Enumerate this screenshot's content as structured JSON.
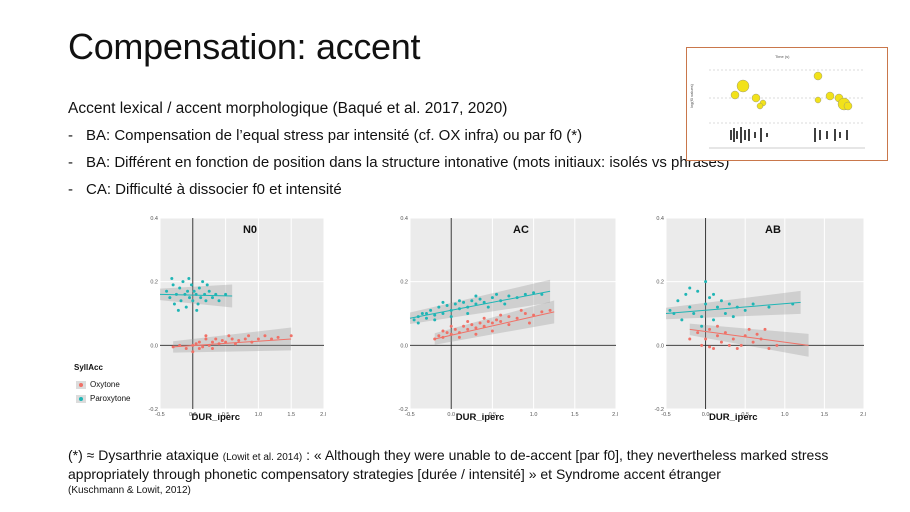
{
  "slide": {
    "title": "Compensation: accent",
    "subtitle": "Accent lexical / accent morphologique (Baqué et al. 2017, 2020)",
    "bullets": [
      {
        "dash": "-",
        "text": "BA: Compensation de l’equal stress par intensité (cf. OX infra) ou par f0 (*)"
      },
      {
        "dash": "-",
        "text": "BA: Différent en fonction de position dans la structure intonative (mots initiaux: isolés vs phrases)"
      },
      {
        "dash": "-",
        "text": "CA: Difficulté à dissocier f0 et intensité"
      }
    ],
    "footer": {
      "prefix": "(*) ≈ Dysarthrie ataxique",
      "ref1": "(Lowit et al. 2014)",
      "quote": ": « Although they were unable to de-accent [par f0], they nevertheless marked stress appropriately through phonetic compensatory strategies [durée / intensité] » et Syndrome accent étranger",
      "ref2": "(Kuschmann & Lowit, 2012)"
    }
  },
  "inset": {
    "border_color": "#c9774b",
    "bubble_color": "#f2e21a",
    "y_label": "log(f0 values)",
    "x_label": "Time (s)"
  },
  "legend": {
    "title": "SyllAcc",
    "items": [
      {
        "label": "Oxytone",
        "color": "#f07167"
      },
      {
        "label": "Paroxytone",
        "color": "#1fb5b5"
      }
    ]
  },
  "chart_data": [
    {
      "type": "scatter",
      "title": "N0",
      "xlabel": "DUR_iperc",
      "xlim": [
        -0.5,
        2.0
      ],
      "ylim": [
        -0.2,
        0.4
      ],
      "x_ticks": [
        "-0.5",
        "0.0",
        "0.5",
        "1.0",
        "1.5",
        "2.0"
      ],
      "y_ticks": [
        "-0.2",
        "0.0",
        "0.2",
        "0.4"
      ],
      "series": [
        {
          "name": "Oxytone",
          "color": "#f07167",
          "points": [
            [
              -0.3,
              -0.005
            ],
            [
              -0.2,
              0.0
            ],
            [
              -0.1,
              -0.01
            ],
            [
              0.0,
              0.0
            ],
            [
              0.05,
              0.005
            ],
            [
              0.1,
              0.01
            ],
            [
              0.15,
              -0.005
            ],
            [
              0.2,
              0.02
            ],
            [
              0.25,
              0.0
            ],
            [
              0.3,
              0.01
            ],
            [
              0.35,
              0.02
            ],
            [
              0.4,
              0.005
            ],
            [
              0.45,
              0.015
            ],
            [
              0.5,
              0.01
            ],
            [
              0.6,
              0.02
            ],
            [
              0.7,
              0.015
            ],
            [
              0.8,
              0.02
            ],
            [
              0.9,
              0.01
            ],
            [
              1.0,
              0.02
            ],
            [
              1.1,
              0.03
            ],
            [
              1.2,
              0.02
            ],
            [
              1.3,
              0.025
            ],
            [
              1.5,
              0.03
            ],
            [
              0.0,
              -0.02
            ],
            [
              0.1,
              -0.01
            ],
            [
              0.2,
              0.03
            ],
            [
              0.3,
              -0.01
            ],
            [
              0.55,
              0.03
            ],
            [
              0.65,
              0.005
            ],
            [
              0.85,
              0.03
            ]
          ],
          "fit": [
            [
              -0.3,
              -0.005
            ],
            [
              1.5,
              0.02
            ]
          ]
        },
        {
          "name": "Paroxytone",
          "color": "#1fb5b5",
          "points": [
            [
              -0.4,
              0.17
            ],
            [
              -0.35,
              0.15
            ],
            [
              -0.3,
              0.19
            ],
            [
              -0.28,
              0.13
            ],
            [
              -0.25,
              0.16
            ],
            [
              -0.2,
              0.18
            ],
            [
              -0.18,
              0.14
            ],
            [
              -0.15,
              0.2
            ],
            [
              -0.12,
              0.16
            ],
            [
              -0.1,
              0.12
            ],
            [
              -0.08,
              0.17
            ],
            [
              -0.05,
              0.15
            ],
            [
              -0.02,
              0.19
            ],
            [
              0.0,
              0.14
            ],
            [
              0.02,
              0.17
            ],
            [
              0.05,
              0.16
            ],
            [
              0.08,
              0.13
            ],
            [
              0.1,
              0.18
            ],
            [
              0.12,
              0.15
            ],
            [
              0.15,
              0.2
            ],
            [
              0.18,
              0.16
            ],
            [
              0.2,
              0.14
            ],
            [
              0.25,
              0.17
            ],
            [
              0.3,
              0.15
            ],
            [
              -0.32,
              0.21
            ],
            [
              -0.22,
              0.11
            ],
            [
              -0.06,
              0.21
            ],
            [
              0.06,
              0.11
            ],
            [
              0.22,
              0.19
            ],
            [
              0.35,
              0.16
            ],
            [
              0.4,
              0.14
            ],
            [
              0.5,
              0.16
            ]
          ],
          "fit": [
            [
              -0.5,
              0.16
            ],
            [
              0.6,
              0.155
            ]
          ]
        }
      ]
    },
    {
      "type": "scatter",
      "title": "AC",
      "xlabel": "DUR_iperc",
      "xlim": [
        -0.5,
        2.0
      ],
      "ylim": [
        -0.2,
        0.4
      ],
      "x_ticks": [
        "-0.5",
        "0.0",
        "0.5",
        "1.0",
        "1.5",
        "2.0"
      ],
      "y_ticks": [
        "-0.2",
        "0.0",
        "0.2",
        "0.4"
      ],
      "series": [
        {
          "name": "Oxytone",
          "color": "#f07167",
          "points": [
            [
              -0.2,
              0.02
            ],
            [
              -0.15,
              0.03
            ],
            [
              -0.1,
              0.025
            ],
            [
              -0.05,
              0.04
            ],
            [
              0.0,
              0.035
            ],
            [
              0.05,
              0.05
            ],
            [
              0.1,
              0.04
            ],
            [
              0.15,
              0.06
            ],
            [
              0.2,
              0.05
            ],
            [
              0.25,
              0.065
            ],
            [
              0.3,
              0.055
            ],
            [
              0.35,
              0.07
            ],
            [
              0.4,
              0.06
            ],
            [
              0.45,
              0.075
            ],
            [
              0.5,
              0.07
            ],
            [
              0.55,
              0.08
            ],
            [
              0.6,
              0.075
            ],
            [
              0.7,
              0.09
            ],
            [
              0.8,
              0.085
            ],
            [
              0.9,
              0.1
            ],
            [
              1.0,
              0.095
            ],
            [
              1.1,
              0.105
            ],
            [
              1.2,
              0.11
            ],
            [
              -0.1,
              0.045
            ],
            [
              0.0,
              0.06
            ],
            [
              0.1,
              0.025
            ],
            [
              0.2,
              0.075
            ],
            [
              0.3,
              0.035
            ],
            [
              0.4,
              0.085
            ],
            [
              0.5,
              0.045
            ],
            [
              0.6,
              0.095
            ],
            [
              0.7,
              0.065
            ],
            [
              0.85,
              0.11
            ],
            [
              0.95,
              0.07
            ]
          ],
          "fit": [
            [
              -0.2,
              0.02
            ],
            [
              1.25,
              0.105
            ]
          ]
        },
        {
          "name": "Paroxytone",
          "color": "#1fb5b5",
          "points": [
            [
              -0.45,
              0.08
            ],
            [
              -0.4,
              0.09
            ],
            [
              -0.35,
              0.1
            ],
            [
              -0.3,
              0.085
            ],
            [
              -0.25,
              0.11
            ],
            [
              -0.2,
              0.095
            ],
            [
              -0.15,
              0.12
            ],
            [
              -0.1,
              0.1
            ],
            [
              -0.05,
              0.125
            ],
            [
              0.0,
              0.11
            ],
            [
              0.05,
              0.13
            ],
            [
              0.1,
              0.115
            ],
            [
              0.15,
              0.135
            ],
            [
              0.2,
              0.12
            ],
            [
              0.25,
              0.14
            ],
            [
              0.3,
              0.13
            ],
            [
              0.35,
              0.145
            ],
            [
              0.4,
              0.135
            ],
            [
              0.5,
              0.15
            ],
            [
              0.6,
              0.14
            ],
            [
              0.7,
              0.155
            ],
            [
              0.8,
              0.15
            ],
            [
              -0.4,
              0.07
            ],
            [
              -0.3,
              0.1
            ],
            [
              -0.2,
              0.08
            ],
            [
              -0.1,
              0.135
            ],
            [
              0.0,
              0.09
            ],
            [
              0.1,
              0.14
            ],
            [
              0.2,
              0.1
            ],
            [
              0.3,
              0.155
            ],
            [
              0.45,
              0.12
            ],
            [
              0.55,
              0.16
            ],
            [
              0.65,
              0.13
            ],
            [
              0.9,
              0.16
            ],
            [
              1.0,
              0.165
            ],
            [
              1.1,
              0.16
            ]
          ],
          "fit": [
            [
              -0.5,
              0.085
            ],
            [
              1.2,
              0.17
            ]
          ]
        }
      ]
    },
    {
      "type": "scatter",
      "title": "AB",
      "xlabel": "DUR_iperc",
      "xlim": [
        -0.5,
        2.0
      ],
      "ylim": [
        -0.2,
        0.4
      ],
      "x_ticks": [
        "-0.5",
        "0.0",
        "0.5",
        "1.0",
        "1.5",
        "2.0"
      ],
      "y_ticks": [
        "-0.2",
        "0.0",
        "0.2",
        "0.4"
      ],
      "series": [
        {
          "name": "Oxytone",
          "color": "#f07167",
          "points": [
            [
              -0.2,
              0.02
            ],
            [
              -0.1,
              0.04
            ],
            [
              -0.05,
              0.0
            ],
            [
              0.0,
              0.02
            ],
            [
              0.05,
              0.05
            ],
            [
              0.1,
              -0.01
            ],
            [
              0.15,
              0.03
            ],
            [
              0.2,
              0.01
            ],
            [
              0.25,
              0.04
            ],
            [
              0.3,
              0.0
            ],
            [
              0.35,
              0.02
            ],
            [
              0.4,
              -0.01
            ],
            [
              0.5,
              0.03
            ],
            [
              0.6,
              0.01
            ],
            [
              0.7,
              0.02
            ],
            [
              0.8,
              -0.01
            ],
            [
              0.9,
              0.0
            ],
            [
              0.55,
              0.05
            ],
            [
              0.45,
              0.0
            ],
            [
              0.65,
              0.035
            ],
            [
              0.75,
              0.05
            ],
            [
              0.05,
              -0.005
            ],
            [
              0.15,
              0.06
            ]
          ],
          "fit": [
            [
              -0.2,
              0.05
            ],
            [
              1.3,
              0.0
            ]
          ]
        },
        {
          "name": "Paroxytone",
          "color": "#1fb5b5",
          "points": [
            [
              -0.4,
              0.1
            ],
            [
              -0.35,
              0.14
            ],
            [
              -0.3,
              0.08
            ],
            [
              -0.25,
              0.16
            ],
            [
              -0.2,
              0.12
            ],
            [
              -0.15,
              0.1
            ],
            [
              -0.1,
              0.17
            ],
            [
              -0.05,
              0.09
            ],
            [
              0.0,
              0.13
            ],
            [
              0.05,
              0.15
            ],
            [
              0.1,
              0.08
            ],
            [
              0.15,
              0.12
            ],
            [
              0.2,
              0.14
            ],
            [
              0.25,
              0.1
            ],
            [
              0.3,
              0.13
            ],
            [
              0.35,
              0.09
            ],
            [
              0.4,
              0.12
            ],
            [
              0.5,
              0.11
            ],
            [
              -0.05,
              0.06
            ],
            [
              0.0,
              0.2
            ],
            [
              -0.2,
              0.18
            ],
            [
              0.1,
              0.16
            ],
            [
              0.6,
              0.13
            ],
            [
              0.8,
              0.12
            ],
            [
              1.1,
              0.13
            ],
            [
              -0.45,
              0.11
            ]
          ],
          "fit": [
            [
              -0.5,
              0.1
            ],
            [
              1.2,
              0.135
            ]
          ]
        }
      ]
    }
  ]
}
